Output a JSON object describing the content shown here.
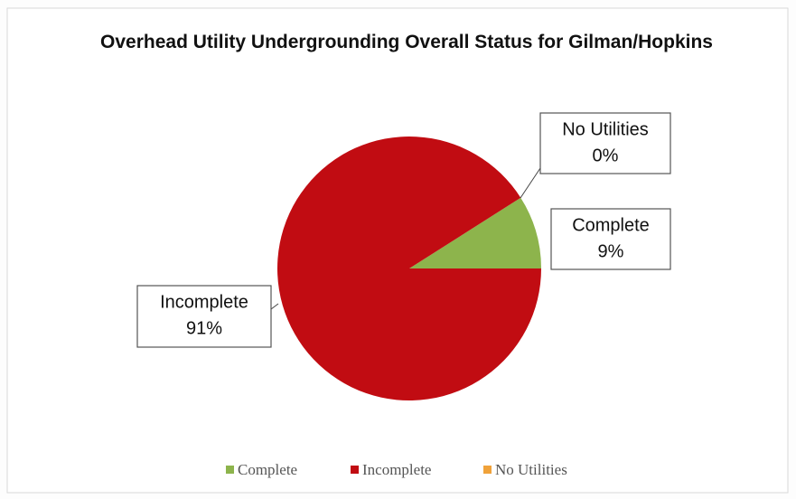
{
  "chart_data": {
    "type": "pie",
    "title": "Overhead Utility Undergrounding Overall Status for Gilman/Hopkins",
    "categories": [
      "Complete",
      "Incomplete",
      "No Utilities"
    ],
    "values": [
      9,
      91,
      0
    ],
    "value_labels": [
      "9%",
      "91%",
      "0%"
    ],
    "colors": [
      "#8db44c",
      "#c10c12",
      "#f0a23a"
    ],
    "legend": "bottom"
  }
}
